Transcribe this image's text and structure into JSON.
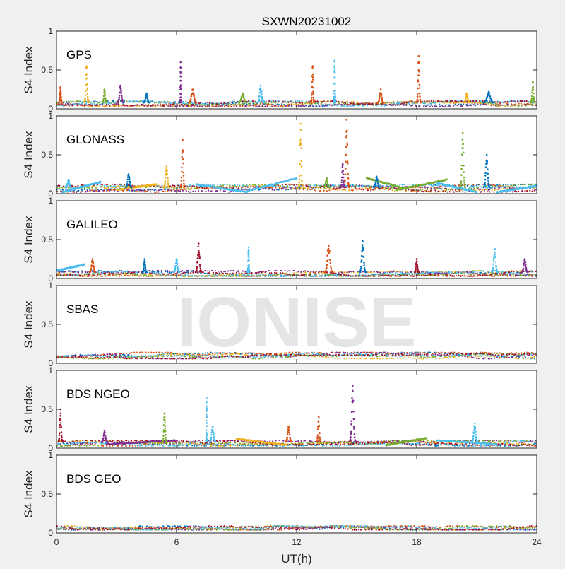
{
  "figure_title": "SXWN20231002",
  "watermark": "IONISE",
  "xlabel": "UT(h)",
  "colors": {
    "series": [
      "#0072BD",
      "#D95319",
      "#EDB120",
      "#7E2F8E",
      "#77AC30",
      "#4DBEEE",
      "#A2142F"
    ],
    "watermark": "#e5e5e5"
  },
  "chart_data": [
    {
      "type": "scatter",
      "panel_label": "GPS",
      "ylabel": "S4 Index",
      "xlim": [
        0,
        24
      ],
      "ylim": [
        0,
        1
      ],
      "yticks": [
        "0",
        "0.5",
        "1"
      ],
      "xticks": [],
      "baseline_range": [
        0.03,
        0.1
      ],
      "spikes": [
        {
          "x": 0.2,
          "peak": 0.28,
          "width": 0.15,
          "series": 1
        },
        {
          "x": 1.5,
          "peak": 0.55,
          "width": 0.2,
          "series": 2
        },
        {
          "x": 2.4,
          "peak": 0.25,
          "width": 0.2,
          "series": 4
        },
        {
          "x": 3.2,
          "peak": 0.3,
          "width": 0.3,
          "series": 3
        },
        {
          "x": 4.5,
          "peak": 0.2,
          "width": 0.3,
          "series": 0
        },
        {
          "x": 6.2,
          "peak": 0.6,
          "width": 0.05,
          "series": 3
        },
        {
          "x": 6.8,
          "peak": 0.25,
          "width": 0.4,
          "series": 1
        },
        {
          "x": 9.3,
          "peak": 0.2,
          "width": 0.4,
          "series": 4
        },
        {
          "x": 10.2,
          "peak": 0.3,
          "width": 0.3,
          "series": 5
        },
        {
          "x": 12.8,
          "peak": 0.55,
          "width": 0.15,
          "series": 1
        },
        {
          "x": 13.9,
          "peak": 0.62,
          "width": 0.1,
          "series": 5
        },
        {
          "x": 16.2,
          "peak": 0.25,
          "width": 0.3,
          "series": 1
        },
        {
          "x": 18.1,
          "peak": 0.68,
          "width": 0.2,
          "series": 1
        },
        {
          "x": 20.5,
          "peak": 0.2,
          "width": 0.3,
          "series": 2
        },
        {
          "x": 21.6,
          "peak": 0.22,
          "width": 0.5,
          "series": 0
        },
        {
          "x": 23.8,
          "peak": 0.35,
          "width": 0.2,
          "series": 4
        }
      ],
      "tracks": []
    },
    {
      "type": "scatter",
      "panel_label": "GLONASS",
      "ylabel": "S4 Index",
      "xlim": [
        0,
        24
      ],
      "ylim": [
        0,
        1
      ],
      "yticks": [
        "0",
        "0.5",
        "1"
      ],
      "xticks": [],
      "baseline_range": [
        0.02,
        0.12
      ],
      "spikes": [
        {
          "x": 0.6,
          "peak": 0.18,
          "width": 0.3,
          "series": 5
        },
        {
          "x": 3.6,
          "peak": 0.25,
          "width": 0.3,
          "series": 0
        },
        {
          "x": 5.5,
          "peak": 0.35,
          "width": 0.3,
          "series": 2
        },
        {
          "x": 6.3,
          "peak": 0.7,
          "width": 0.2,
          "series": 1
        },
        {
          "x": 12.2,
          "peak": 0.9,
          "width": 0.2,
          "series": 2
        },
        {
          "x": 13.5,
          "peak": 0.2,
          "width": 0.3,
          "series": 4
        },
        {
          "x": 14.5,
          "peak": 0.95,
          "width": 0.25,
          "series": 1
        },
        {
          "x": 14.3,
          "peak": 0.38,
          "width": 0.2,
          "series": 3
        },
        {
          "x": 16.0,
          "peak": 0.22,
          "width": 0.3,
          "series": 0
        },
        {
          "x": 20.3,
          "peak": 0.78,
          "width": 0.25,
          "series": 4
        },
        {
          "x": 21.5,
          "peak": 0.5,
          "width": 0.3,
          "series": 0
        }
      ],
      "tracks": [
        {
          "x0": 0.3,
          "x1": 2.2,
          "y0": 0.02,
          "y1": 0.15,
          "series": 5
        },
        {
          "x0": 3.0,
          "x1": 5.0,
          "y0": 0.05,
          "y1": 0.12,
          "series": 2
        },
        {
          "x0": 7.0,
          "x1": 9.5,
          "y0": 0.12,
          "y1": 0.02,
          "series": 5
        },
        {
          "x0": 9.5,
          "x1": 12.0,
          "y0": 0.03,
          "y1": 0.2,
          "series": 5
        },
        {
          "x0": 15.5,
          "x1": 17.5,
          "y0": 0.2,
          "y1": 0.06,
          "series": 4
        },
        {
          "x0": 17.0,
          "x1": 19.5,
          "y0": 0.05,
          "y1": 0.18,
          "series": 4
        },
        {
          "x0": 19.0,
          "x1": 21.0,
          "y0": 0.14,
          "y1": 0.02,
          "series": 5
        },
        {
          "x0": 22.0,
          "x1": 24.0,
          "y0": 0.02,
          "y1": 0.1,
          "series": 5
        }
      ]
    },
    {
      "type": "scatter",
      "panel_label": "GALILEO",
      "ylabel": "S4 Index",
      "xlim": [
        0,
        24
      ],
      "ylim": [
        0,
        1
      ],
      "yticks": [
        "0",
        "0.5",
        "1"
      ],
      "xticks": [],
      "baseline_range": [
        0.03,
        0.1
      ],
      "spikes": [
        {
          "x": 1.8,
          "peak": 0.25,
          "width": 0.3,
          "series": 1
        },
        {
          "x": 4.4,
          "peak": 0.25,
          "width": 0.2,
          "series": 0
        },
        {
          "x": 6.0,
          "peak": 0.25,
          "width": 0.3,
          "series": 5
        },
        {
          "x": 7.1,
          "peak": 0.45,
          "width": 0.3,
          "series": 6
        },
        {
          "x": 9.6,
          "peak": 0.4,
          "width": 0.1,
          "series": 5
        },
        {
          "x": 13.6,
          "peak": 0.42,
          "width": 0.4,
          "series": 1
        },
        {
          "x": 15.3,
          "peak": 0.48,
          "width": 0.3,
          "series": 0
        },
        {
          "x": 18.0,
          "peak": 0.25,
          "width": 0.2,
          "series": 6
        },
        {
          "x": 21.9,
          "peak": 0.38,
          "width": 0.3,
          "series": 5
        },
        {
          "x": 23.4,
          "peak": 0.25,
          "width": 0.3,
          "series": 3
        }
      ],
      "tracks": [
        {
          "x0": 0.0,
          "x1": 1.4,
          "y0": 0.1,
          "y1": 0.18,
          "series": 5
        }
      ]
    },
    {
      "type": "scatter",
      "panel_label": "SBAS",
      "ylabel": "S4 Index",
      "xlim": [
        0,
        24
      ],
      "ylim": [
        0,
        1
      ],
      "yticks": [
        "0",
        "0.5",
        "1"
      ],
      "xticks": [],
      "baseline_range": [
        0.06,
        0.14
      ],
      "spikes": [],
      "tracks": []
    },
    {
      "type": "scatter",
      "panel_label": "BDS NGEO",
      "ylabel": "S4 Index",
      "xlim": [
        0,
        24
      ],
      "ylim": [
        0,
        1
      ],
      "yticks": [
        "0",
        "0.5",
        "1"
      ],
      "xticks": [],
      "baseline_range": [
        0.03,
        0.1
      ],
      "spikes": [
        {
          "x": 0.2,
          "peak": 0.5,
          "width": 0.2,
          "series": 6
        },
        {
          "x": 2.4,
          "peak": 0.22,
          "width": 0.3,
          "series": 3
        },
        {
          "x": 5.4,
          "peak": 0.45,
          "width": 0.2,
          "series": 4
        },
        {
          "x": 7.5,
          "peak": 0.65,
          "width": 0.05,
          "series": 5
        },
        {
          "x": 7.8,
          "peak": 0.28,
          "width": 0.3,
          "series": 5
        },
        {
          "x": 11.6,
          "peak": 0.28,
          "width": 0.3,
          "series": 1
        },
        {
          "x": 13.1,
          "peak": 0.4,
          "width": 0.2,
          "series": 1
        },
        {
          "x": 14.8,
          "peak": 0.8,
          "width": 0.3,
          "series": 3
        },
        {
          "x": 20.9,
          "peak": 0.32,
          "width": 0.3,
          "series": 5
        }
      ],
      "tracks": [
        {
          "x0": 2.5,
          "x1": 6.0,
          "y0": 0.05,
          "y1": 0.1,
          "series": 3
        },
        {
          "x0": 9.0,
          "x1": 11.5,
          "y0": 0.12,
          "y1": 0.04,
          "series": 2
        },
        {
          "x0": 16.5,
          "x1": 18.5,
          "y0": 0.04,
          "y1": 0.13,
          "series": 4
        },
        {
          "x0": 19.0,
          "x1": 22.0,
          "y0": 0.1,
          "y1": 0.05,
          "series": 5
        }
      ]
    },
    {
      "type": "scatter",
      "panel_label": "BDS GEO",
      "ylabel": "S4 Index",
      "xlim": [
        0,
        24
      ],
      "ylim": [
        0,
        1
      ],
      "yticks": [
        "0",
        "0.5",
        "1"
      ],
      "xticks": [
        "0",
        "6",
        "12",
        "18",
        "24"
      ],
      "baseline_range": [
        0.04,
        0.09
      ],
      "spikes": [],
      "tracks": []
    }
  ]
}
